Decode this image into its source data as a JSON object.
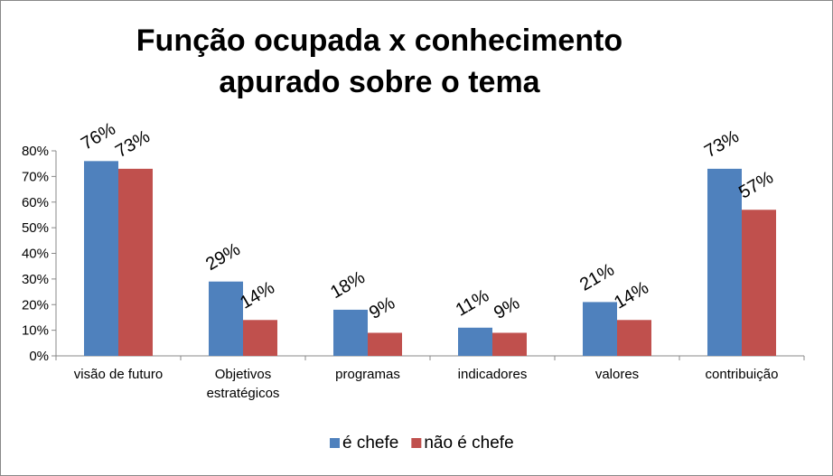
{
  "chart_data": {
    "type": "bar",
    "title": "Função ocupada x conhecimento apurado sobre o tema",
    "categories": [
      "visão de futuro",
      "Objetivos estratégicos",
      "programas",
      "indicadores",
      "valores",
      "contribuição"
    ],
    "series": [
      {
        "name": "é chefe",
        "color": "#4f81bd",
        "values": [
          76,
          29,
          18,
          11,
          21,
          73
        ],
        "value_labels": [
          "76%",
          "29%",
          "18%",
          "11%",
          "21%",
          "73%"
        ]
      },
      {
        "name": "não é chefe",
        "color": "#c0504d",
        "values": [
          73,
          14,
          9,
          9,
          14,
          57
        ],
        "value_labels": [
          "73%",
          "14%",
          "9%",
          "9%",
          "14%",
          "57%"
        ]
      }
    ],
    "ylim": [
      0,
      80
    ],
    "yticks": [
      {
        "value": 0,
        "label": "0%"
      },
      {
        "value": 10,
        "label": "10%"
      },
      {
        "value": 20,
        "label": "20%"
      },
      {
        "value": 30,
        "label": "30%"
      },
      {
        "value": 40,
        "label": "40%"
      },
      {
        "value": 50,
        "label": "50%"
      },
      {
        "value": 60,
        "label": "60%"
      },
      {
        "value": 70,
        "label": "70%"
      },
      {
        "value": 80,
        "label": "80%"
      }
    ],
    "legend": "bottom"
  }
}
